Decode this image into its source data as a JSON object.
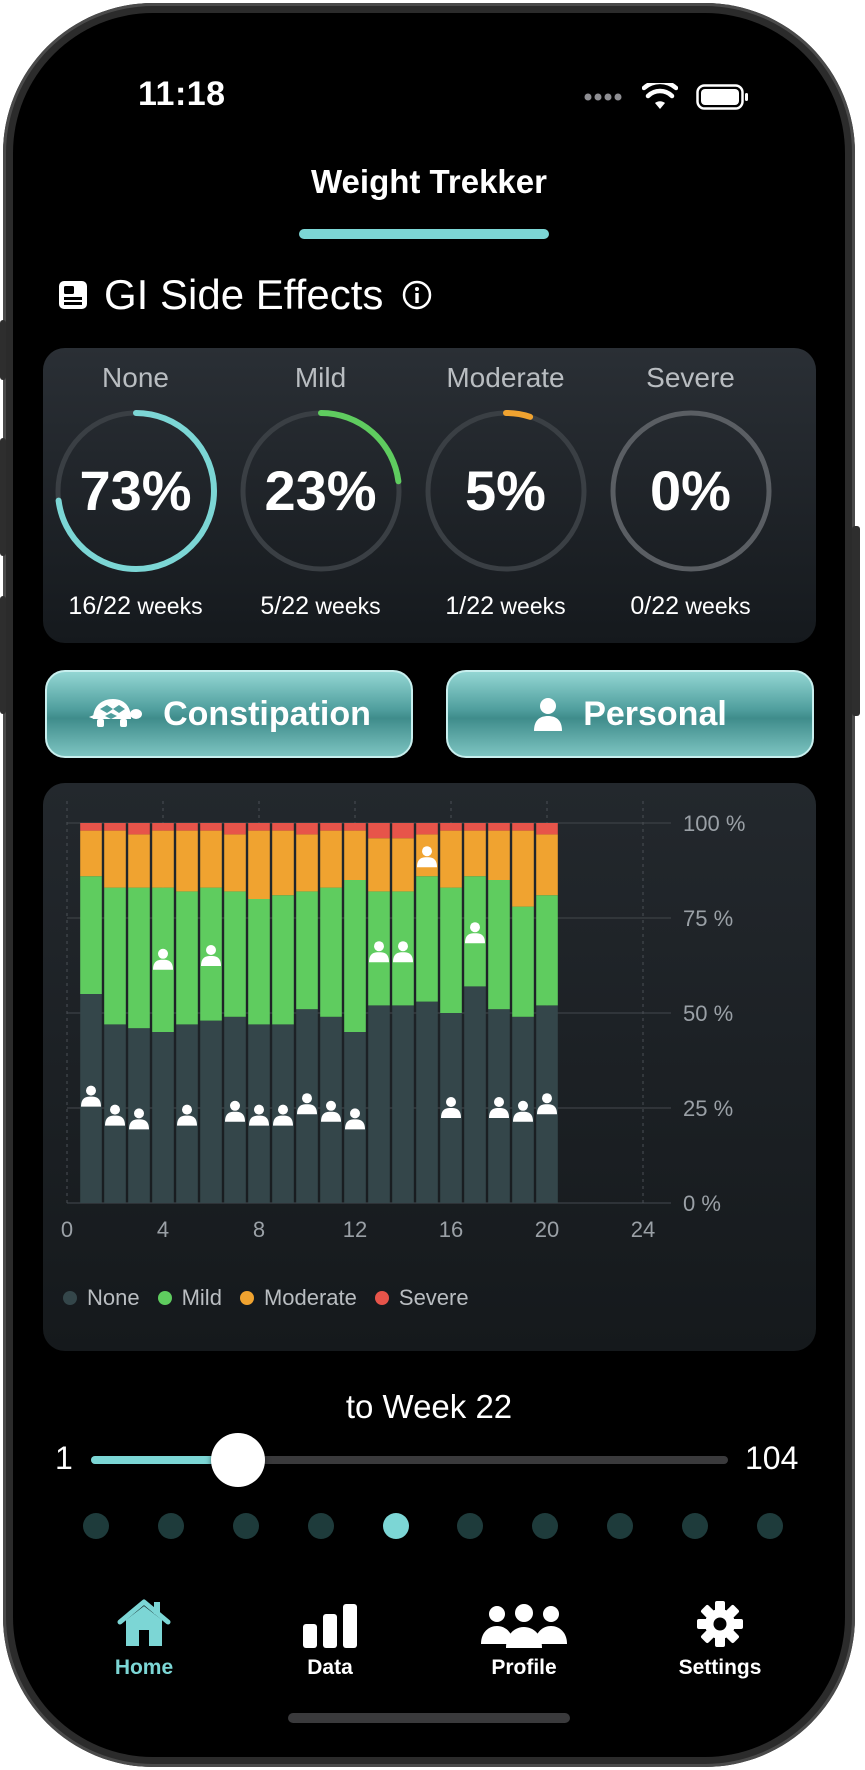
{
  "status_bar": {
    "time": "11:18"
  },
  "header": {
    "title": "Weight Trekker"
  },
  "section": {
    "title": "GI Side Effects",
    "icon": "report-icon",
    "info_icon": "info-icon"
  },
  "summary": [
    {
      "label": "None",
      "percent": "73%",
      "fraction": 0.73,
      "weeks_num": "16/22",
      "weeks_unit": "weeks",
      "color": "#7cd6d5"
    },
    {
      "label": "Mild",
      "percent": "23%",
      "fraction": 0.23,
      "weeks_num": "5/22",
      "weeks_unit": "weeks",
      "color": "#5fcc5f"
    },
    {
      "label": "Moderate",
      "percent": "5%",
      "fraction": 0.05,
      "weeks_num": "1/22",
      "weeks_unit": "weeks",
      "color": "#f0a330"
    },
    {
      "label": "Severe",
      "percent": "0%",
      "fraction": 0.0,
      "weeks_num": "0/22",
      "weeks_unit": "weeks",
      "color": "#e7544a"
    }
  ],
  "buttons": {
    "constipation": {
      "label": "Constipation",
      "icon": "turtle-icon"
    },
    "personal": {
      "label": "Personal",
      "icon": "person-icon"
    }
  },
  "chart_data": {
    "type": "bar",
    "stacked": true,
    "x": [
      1,
      2,
      3,
      4,
      5,
      6,
      7,
      8,
      9,
      10,
      11,
      12,
      13,
      14,
      15,
      16,
      17,
      18,
      19,
      20
    ],
    "series": [
      {
        "name": "None",
        "color": "#34464a",
        "values": [
          55,
          47,
          46,
          45,
          47,
          48,
          49,
          47,
          47,
          51,
          49,
          45,
          52,
          52,
          53,
          50,
          57,
          51,
          49,
          52
        ]
      },
      {
        "name": "Mild",
        "color": "#5fcc5f",
        "values": [
          31,
          36,
          37,
          38,
          35,
          35,
          33,
          33,
          34,
          31,
          34,
          40,
          30,
          30,
          33,
          33,
          29,
          34,
          29,
          29
        ]
      },
      {
        "name": "Moderate",
        "color": "#f0a330",
        "values": [
          12,
          15,
          14,
          15,
          16,
          15,
          15,
          18,
          17,
          15,
          15,
          13,
          14,
          14,
          11,
          15,
          12,
          13,
          20,
          16
        ]
      },
      {
        "name": "Severe",
        "color": "#e7544a",
        "values": [
          2,
          2,
          3,
          2,
          2,
          2,
          3,
          2,
          2,
          3,
          2,
          2,
          4,
          4,
          3,
          2,
          2,
          2,
          2,
          3
        ]
      }
    ],
    "markers": [
      {
        "x": 1,
        "y": 28
      },
      {
        "x": 2,
        "y": 23
      },
      {
        "x": 3,
        "y": 22
      },
      {
        "x": 4,
        "y": 64
      },
      {
        "x": 5,
        "y": 23
      },
      {
        "x": 6,
        "y": 65
      },
      {
        "x": 7,
        "y": 24
      },
      {
        "x": 8,
        "y": 23
      },
      {
        "x": 9,
        "y": 23
      },
      {
        "x": 10,
        "y": 26
      },
      {
        "x": 11,
        "y": 24
      },
      {
        "x": 12,
        "y": 22
      },
      {
        "x": 13,
        "y": 66
      },
      {
        "x": 14,
        "y": 66
      },
      {
        "x": 15,
        "y": 91
      },
      {
        "x": 16,
        "y": 25
      },
      {
        "x": 17,
        "y": 71
      },
      {
        "x": 18,
        "y": 25
      },
      {
        "x": 19,
        "y": 24
      },
      {
        "x": 20,
        "y": 26
      }
    ],
    "xlim": [
      0,
      24
    ],
    "xticks": [
      "0",
      "4",
      "8",
      "12",
      "16",
      "20",
      "24"
    ],
    "ylim": [
      0,
      100
    ],
    "yticks": [
      "0 %",
      "25 %",
      "50 %",
      "75 %",
      "100 %"
    ],
    "grid": true,
    "legend": "bottom-left"
  },
  "slider": {
    "label": "to Week 22",
    "min": "1",
    "max": "104",
    "fraction": 0.23
  },
  "page_dots": {
    "count": 10,
    "active": 4
  },
  "tabs": [
    {
      "label": "Home",
      "icon": "home-icon"
    },
    {
      "label": "Data",
      "icon": "bar-chart-icon"
    },
    {
      "label": "Profile",
      "icon": "people-icon"
    },
    {
      "label": "Settings",
      "icon": "gear-icon"
    }
  ]
}
